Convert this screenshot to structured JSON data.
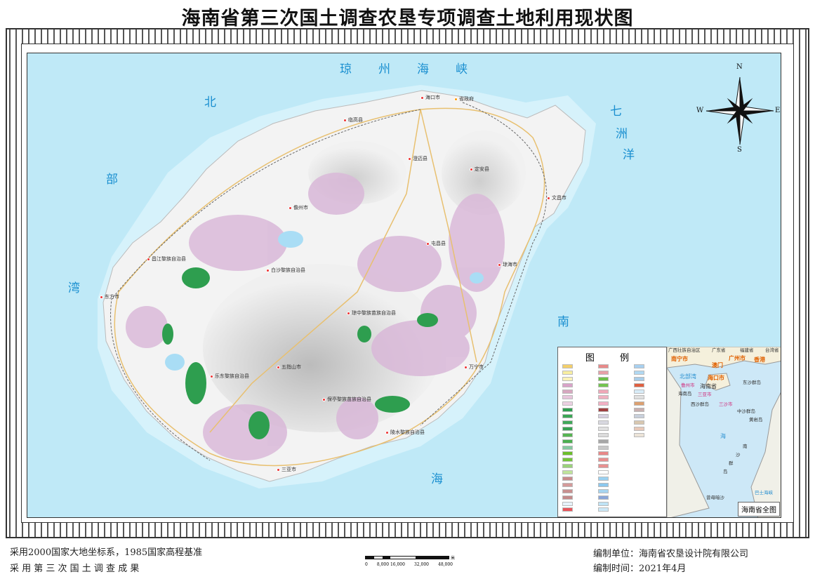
{
  "title": "海南省第三次国土调查农垦专项调查土地利用现状图",
  "sea_labels": {
    "qiongzhou": [
      "琼",
      "州",
      "海",
      "峡"
    ],
    "beibu": [
      "北",
      "部",
      "湾"
    ],
    "qizhou": [
      "七",
      "洲",
      "洋"
    ],
    "nanhai": [
      "南",
      "海"
    ]
  },
  "cities": [
    {
      "name": "海口市"
    },
    {
      "name": "省政府"
    },
    {
      "name": "临高县"
    },
    {
      "name": "澄迈县"
    },
    {
      "name": "定安县"
    },
    {
      "name": "文昌市"
    },
    {
      "name": "儋州市"
    },
    {
      "name": "屯昌县"
    },
    {
      "name": "琼海市"
    },
    {
      "name": "昌江黎族自治县"
    },
    {
      "name": "白沙黎族自治县"
    },
    {
      "name": "东方市"
    },
    {
      "name": "琼中黎族苗族自治县"
    },
    {
      "name": "五指山市"
    },
    {
      "name": "乐东黎族自治县"
    },
    {
      "name": "保亭黎族苗族自治县"
    },
    {
      "name": "万宁市"
    },
    {
      "name": "陵水黎族自治县"
    },
    {
      "name": "三亚市"
    }
  ],
  "compass": {
    "n": "N",
    "s": "S",
    "e": "E",
    "w": "W"
  },
  "legend": {
    "title": "图 例",
    "swatch_colors": [
      [
        "#f4cf6a",
        "#f8eea0",
        "#faf2b8",
        "#d9a3c9",
        "#d7a7c0",
        "#e8c5dc",
        "#ecd0e3",
        "#2e9e4f",
        "#3aa655",
        "#41a85a",
        "#37a052",
        "#56b452",
        "#4caf50",
        "#86c9a0",
        "#6cbf2a",
        "#73c43a",
        "#9ad27a",
        "#bfe39a",
        "#c98a8a",
        "#d49a9a",
        "#c89090",
        "#c48a8a",
        "#e6f2fa",
        "#e8545a"
      ],
      [
        "#e88a8a",
        "#e6a0a8",
        "#6cbf4a",
        "#73c450",
        "#f0a8b8",
        "#f0b0c0",
        "#f2b0c4",
        "#a04040",
        "#d8d0e0",
        "#d8d8e0",
        "#e0e0e0",
        "#dcdcdc",
        "#a8a8a8",
        "#c8c8c8",
        "#e88888",
        "#e89090",
        "#e89090",
        "#ffffff",
        "#9ad0f0",
        "#8cc8ee",
        "#a6d4f0",
        "#8aa6d8",
        "#bfe3f5",
        "#cbe8f7"
      ],
      [
        "#a8d0f0",
        "#b0d8f2",
        "#a8cce8",
        "#e06040",
        "#d8ecf8",
        "#e0e0e0",
        "#dca070",
        "#c8b0b0",
        "#c8d0dc",
        "#d8c8b0",
        "#e8c8b8",
        "#ece4d8"
      ]
    ]
  },
  "inset": {
    "labels": [
      "广西壮族自治区",
      "广东省",
      "福建省",
      "台湾省",
      "南宁市",
      "广州市",
      "澳门",
      "香港",
      "海口市",
      "海南省",
      "儋州市",
      "三亚市",
      "三沙市",
      "北部湾",
      "海南岛",
      "东沙群岛",
      "西沙群岛",
      "中沙群岛",
      "黄岩岛",
      "南",
      "沙",
      "群",
      "岛",
      "海",
      "曾母暗沙",
      "巴士海峡"
    ],
    "title": "海南省全图"
  },
  "footer": {
    "left1": "采用2000国家大地坐标系，1985国家高程基准",
    "left2": "采 用 第 三 次 国 土 调 查 成 果",
    "right1": "编制单位：海南省农垦设计院有限公司",
    "right2": "编制时间：2021年4月",
    "scale_labels": [
      "0",
      "8,000 16,000",
      "32,000",
      "48,000"
    ],
    "scale_unit": "米"
  }
}
